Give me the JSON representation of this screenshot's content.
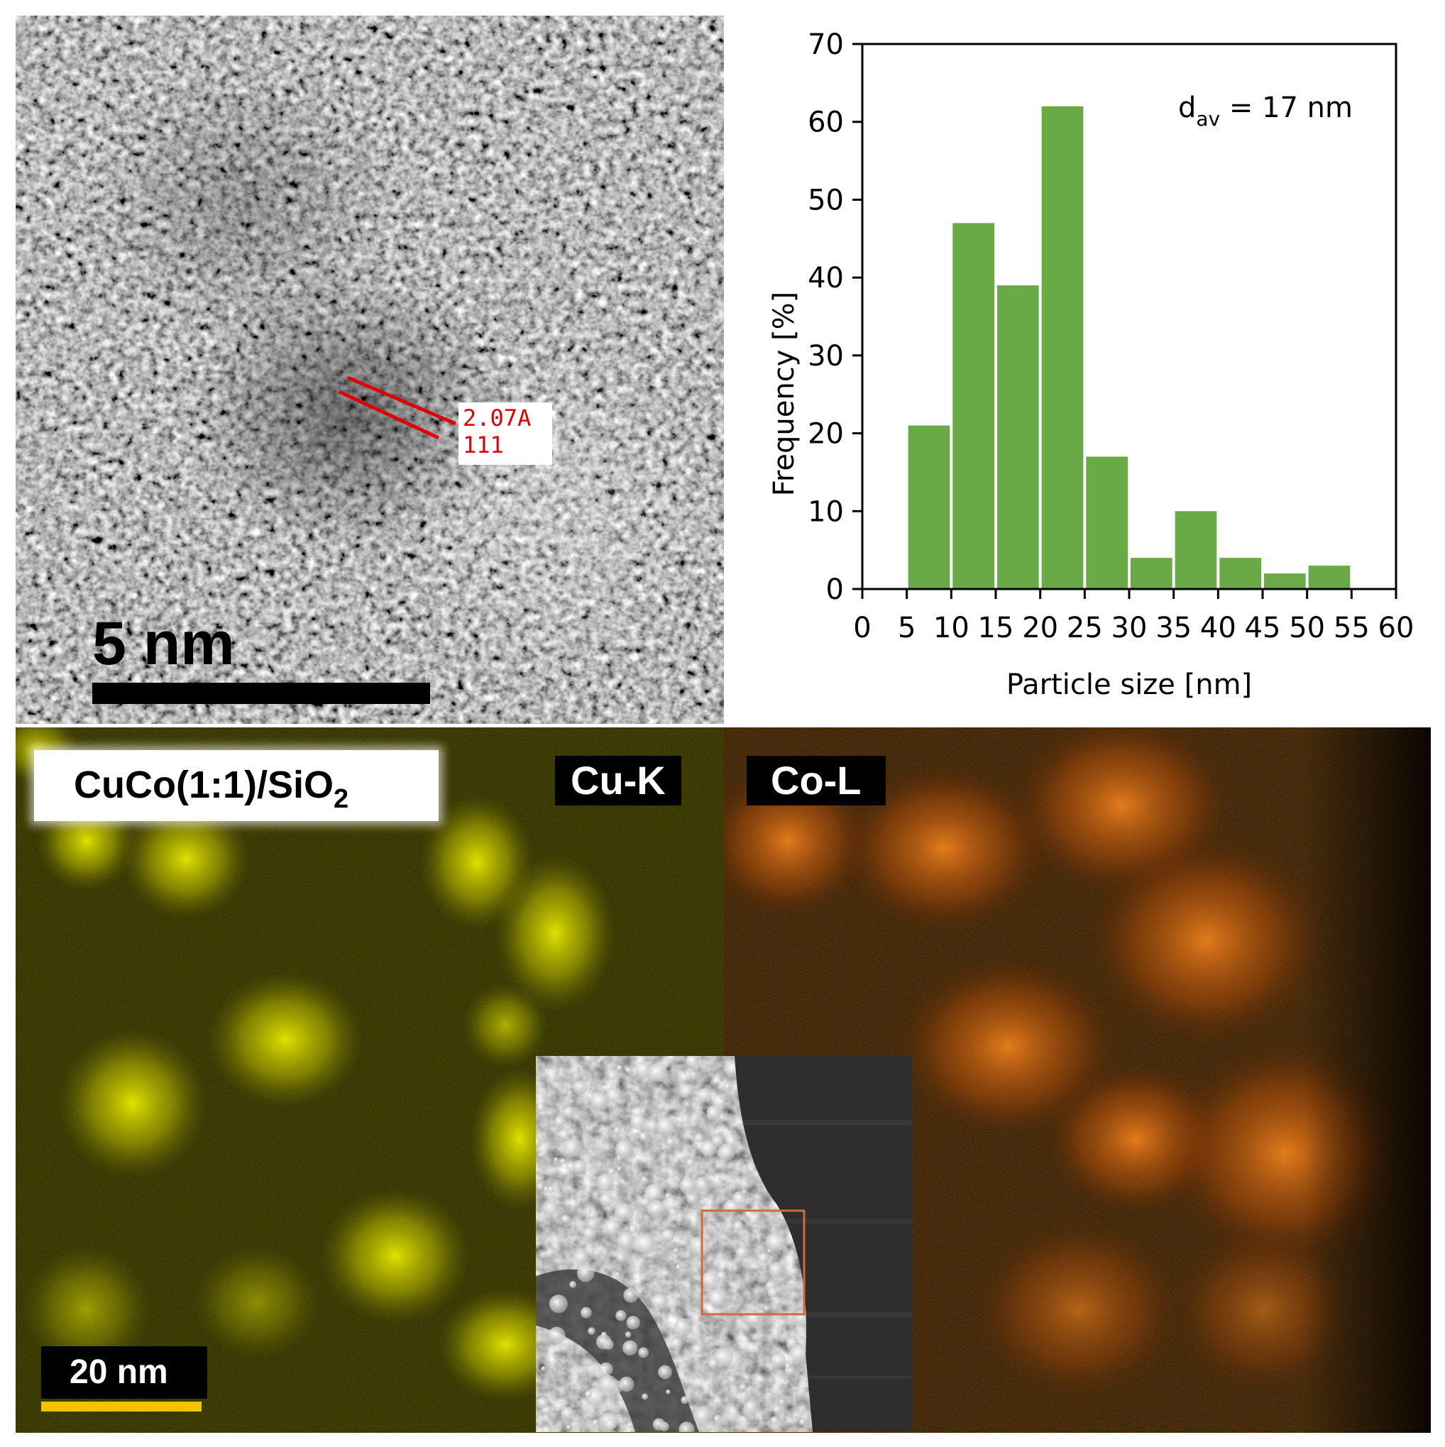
{
  "tem_panel": {
    "lattice_spacing": "2.07A",
    "lattice_plane": "111",
    "scale_bar": "5 nm"
  },
  "eds_panel": {
    "sample_label_main": "CuCo(1:1)/SiO",
    "sample_label_sub": "2",
    "cu_map_label": "Cu-K",
    "co_map_label": "Co-L",
    "scale_bar": "20 nm",
    "colors": {
      "cu": "#e6e600",
      "co": "#ff7a10",
      "scale_bar": "#f2c200",
      "roi_box": "#d36a3a"
    }
  },
  "chart_data": {
    "type": "bar",
    "annotation_main": "d",
    "annotation_sub": "av",
    "annotation_rest": " = 17 nm",
    "xlabel": "Particle size [nm]",
    "ylabel": "Frequency [%]",
    "xlim": [
      0,
      60
    ],
    "ylim": [
      0,
      70
    ],
    "xticks": [
      0,
      5,
      10,
      15,
      20,
      25,
      30,
      35,
      40,
      45,
      50,
      55,
      60
    ],
    "yticks": [
      0,
      10,
      20,
      30,
      40,
      50,
      60,
      70
    ],
    "bin_edges": [
      5,
      10,
      15,
      20,
      25,
      30,
      35,
      40,
      45,
      50,
      55
    ],
    "values": [
      21,
      47,
      39,
      62,
      17,
      4,
      10,
      4,
      2,
      3
    ],
    "bar_color": "#6aaa46",
    "grid": false
  }
}
